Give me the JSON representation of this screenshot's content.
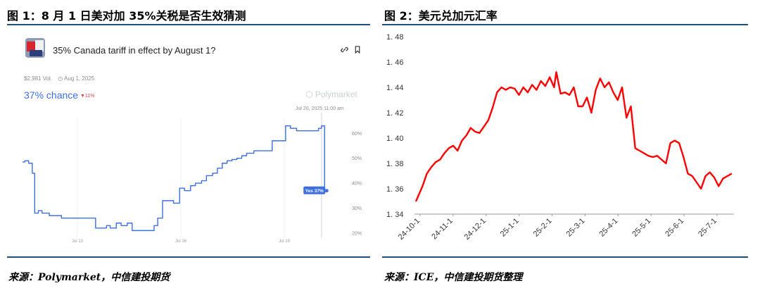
{
  "figure1": {
    "title": "图 1：8 月 1 日美对加 35%关税是否生效猜测",
    "source": "来源：Polymarket，中信建投期货"
  },
  "figure2": {
    "title": "图 2：美元兑加元汇率",
    "source": "来源：ICE，中信建投期货整理"
  },
  "polymarket": {
    "question": "35% Canada tariff in effect by August 1?",
    "volume": "$2,981 Vol.",
    "date": "Aug 1, 2025",
    "chance": "37% chance",
    "change": "▼11%",
    "brand": "Polymarket",
    "timestamp": "Jul 20, 2025 11:00 am",
    "tooltip": "Yes 37%",
    "icons": [
      "link-icon",
      "bookmark-icon",
      "clock-icon",
      "polymarket-logo-icon"
    ],
    "accent": "#3d6fe0"
  },
  "chart_data": [
    {
      "type": "line",
      "title": "35% Canada tariff in effect by August 1?",
      "x_ticks": [
        "Jul 13",
        "Jul 16",
        "Jul 19"
      ],
      "y_ticks": [
        "60%",
        "50%",
        "40%",
        "30%",
        "20%"
      ],
      "ylim": [
        18,
        66
      ],
      "xlim": [
        0,
        26
      ],
      "series": [
        {
          "name": "Yes",
          "color": "#3d6fe0",
          "x": [
            0,
            0.2,
            0.5,
            0.8,
            1.0,
            1.3,
            1.6,
            2.2,
            3.2,
            4.5,
            5.5,
            6.0,
            6.4,
            6.9,
            7.2,
            7.7,
            8.1,
            8.6,
            9.0,
            9.8,
            10.8,
            11.1,
            11.5,
            12.0,
            12.4,
            12.9,
            13.3,
            13.8,
            14.2,
            14.7,
            15.1,
            15.6,
            16.0,
            16.4,
            16.8,
            17.2,
            17.6,
            18.0,
            18.4,
            19.0,
            20.0,
            20.5,
            21.2,
            21.6,
            22.0,
            22.5,
            23.5,
            24.3,
            24.55,
            24.8
          ],
          "y": [
            48.5,
            49,
            48,
            44,
            28,
            29,
            28,
            27,
            26,
            26,
            26,
            22,
            22,
            23,
            22,
            24,
            23,
            24,
            21,
            21,
            23,
            26,
            33,
            33,
            32,
            38,
            37,
            39,
            40,
            41,
            43,
            44,
            46,
            48,
            49,
            49.5,
            50,
            51,
            52,
            53,
            53,
            57,
            57,
            63,
            62,
            61,
            61,
            62,
            63,
            37
          ]
        }
      ]
    },
    {
      "type": "line",
      "title": "美元兑加元汇率",
      "x_ticks": [
        "24-10-1",
        "24-11-1",
        "24-12-1",
        "25-1-1",
        "25-2-1",
        "25-3-1",
        "25-4-1",
        "25-5-1",
        "25-6-1",
        "25-7-1"
      ],
      "y_ticks": [
        "1. 48",
        "1. 46",
        "1. 44",
        "1. 42",
        "1. 40",
        "1. 38",
        "1. 36",
        "1. 34"
      ],
      "ylim": [
        1.34,
        1.48
      ],
      "xlim": [
        0,
        290
      ],
      "series": [
        {
          "name": "USD/CAD",
          "color": "#ff0000",
          "x": [
            0,
            3,
            6,
            10,
            14,
            18,
            22,
            26,
            30,
            34,
            38,
            42,
            46,
            50,
            54,
            58,
            62,
            66,
            70,
            74,
            78,
            82,
            86,
            90,
            94,
            98,
            102,
            106,
            110,
            114,
            118,
            122,
            126,
            128,
            132,
            136,
            140,
            144,
            148,
            152,
            156,
            160,
            164,
            168,
            172,
            176,
            180,
            184,
            188,
            192,
            196,
            200,
            204,
            208,
            212,
            216,
            220,
            224,
            228,
            232,
            236,
            240,
            244,
            248,
            252,
            256,
            260,
            264,
            268,
            272,
            276,
            280,
            284,
            288
          ],
          "y": [
            1.35,
            1.356,
            1.362,
            1.372,
            1.377,
            1.381,
            1.383,
            1.388,
            1.392,
            1.394,
            1.39,
            1.398,
            1.402,
            1.408,
            1.405,
            1.404,
            1.409,
            1.414,
            1.424,
            1.436,
            1.44,
            1.438,
            1.44,
            1.439,
            1.434,
            1.44,
            1.436,
            1.442,
            1.438,
            1.445,
            1.441,
            1.448,
            1.44,
            1.452,
            1.435,
            1.436,
            1.434,
            1.44,
            1.425,
            1.425,
            1.432,
            1.42,
            1.438,
            1.447,
            1.44,
            1.444,
            1.436,
            1.43,
            1.44,
            1.416,
            1.425,
            1.392,
            1.39,
            1.388,
            1.386,
            1.385,
            1.386,
            1.383,
            1.38,
            1.396,
            1.398,
            1.396,
            1.385,
            1.372,
            1.37,
            1.365,
            1.36,
            1.37,
            1.373,
            1.369,
            1.362,
            1.368,
            1.37,
            1.372
          ]
        }
      ]
    }
  ]
}
